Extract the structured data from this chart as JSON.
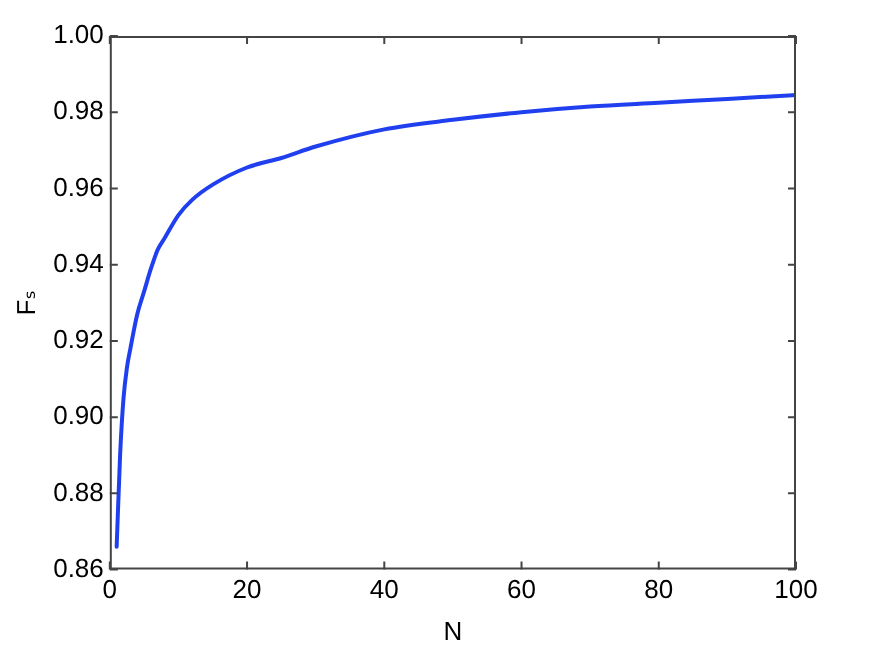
{
  "chart_data": {
    "type": "line",
    "xlabel": "N",
    "ylabel": "Fₛ",
    "x": [
      1,
      1.5,
      2,
      2.5,
      3,
      4,
      5,
      6,
      7,
      8,
      10,
      12,
      15,
      20,
      25,
      30,
      40,
      50,
      60,
      70,
      80,
      90,
      100
    ],
    "series": [
      {
        "color": "#2040f0",
        "values": [
          0.866,
          0.89,
          0.905,
          0.913,
          0.918,
          0.927,
          0.933,
          0.939,
          0.944,
          0.947,
          0.953,
          0.957,
          0.961,
          0.9655,
          0.968,
          0.971,
          0.9755,
          0.978,
          0.98,
          0.9815,
          0.9825,
          0.9835,
          0.9845
        ]
      }
    ],
    "xlim": [
      0,
      100
    ],
    "xticks": [
      0,
      20,
      40,
      60,
      80,
      100
    ],
    "ylim": [
      0.86,
      1.0
    ],
    "yticks": [
      {
        "value": 0.86,
        "label": "0.86"
      },
      {
        "value": 0.88,
        "label": "0.88"
      },
      {
        "value": 0.9,
        "label": "0.90"
      },
      {
        "value": 0.92,
        "label": "0.92"
      },
      {
        "value": 0.94,
        "label": "0.94"
      },
      {
        "value": 0.96,
        "label": "0.96"
      },
      {
        "value": 0.98,
        "label": "0.98"
      },
      {
        "value": 1.0,
        "label": "1.00"
      }
    ],
    "grid": false,
    "legend": false,
    "marker": "none",
    "line_style": "solid"
  }
}
